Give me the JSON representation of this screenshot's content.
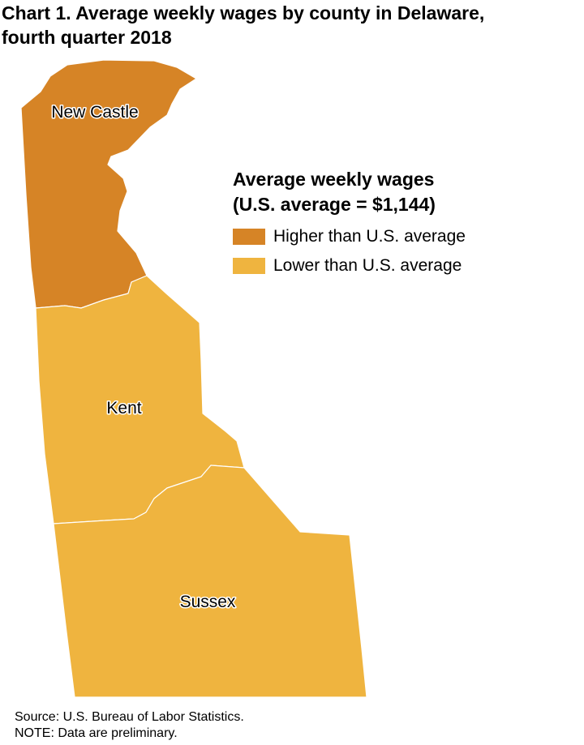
{
  "title_line1": "Chart 1. Average weekly wages by county in Delaware,",
  "title_line2": "fourth quarter 2018",
  "legend": {
    "title_line1": "Average weekly wages",
    "title_line2": "(U.S. average = $1,144)",
    "items": [
      {
        "label": "Higher than U.S. average",
        "color": "#d68426"
      },
      {
        "label": "Lower than U.S. average",
        "color": "#efb43f"
      }
    ]
  },
  "counties": [
    {
      "name": "New Castle",
      "category": "Higher than U.S. average",
      "color": "#d68426"
    },
    {
      "name": "Kent",
      "category": "Lower than U.S. average",
      "color": "#efb43f"
    },
    {
      "name": "Sussex",
      "category": "Lower than U.S. average",
      "color": "#efb43f"
    }
  ],
  "footer": {
    "source": "Source: U.S. Bureau of Labor Statistics.",
    "note": "NOTE: Data are preliminary."
  }
}
